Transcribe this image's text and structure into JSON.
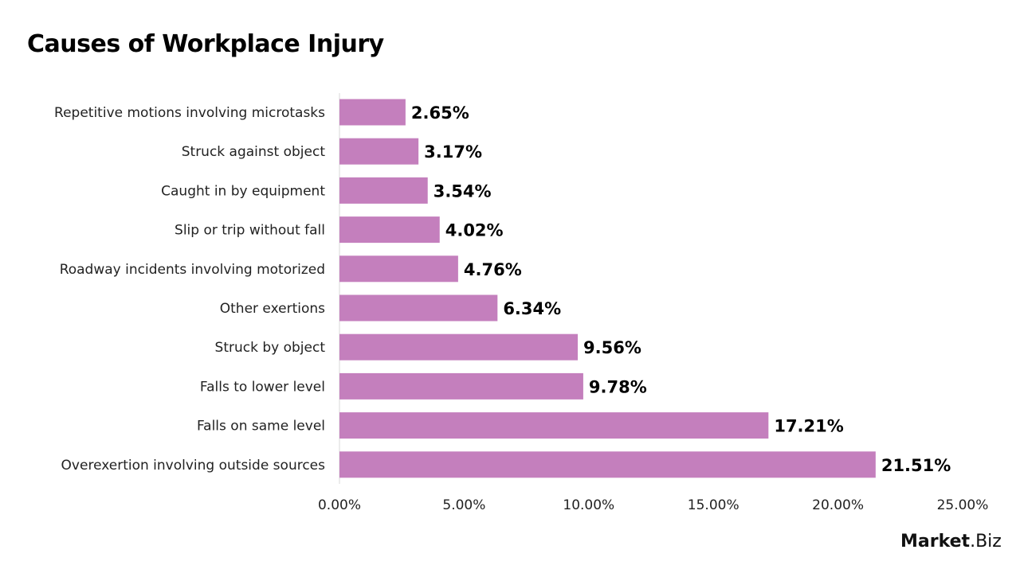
{
  "chart_data": {
    "type": "bar",
    "orientation": "horizontal",
    "title": "Causes of Workplace Injury",
    "categories": [
      "Repetitive motions involving microtasks",
      "Struck against object",
      "Caught in by equipment",
      "Slip or trip without fall",
      "Roadway incidents involving motorized",
      "Other exertions",
      "Struck by object",
      "Falls to lower level",
      "Falls on same level",
      "Overexertion involving outside sources"
    ],
    "values": [
      2.65,
      3.17,
      3.54,
      4.02,
      4.76,
      6.34,
      9.56,
      9.78,
      17.21,
      21.51
    ],
    "data_labels": [
      "2.65%",
      "3.17%",
      "3.54%",
      "4.02%",
      "4.76%",
      "6.34%",
      "9.56%",
      "9.78%",
      "17.21%",
      "21.51%"
    ],
    "xlim": [
      0,
      25
    ],
    "x_ticks": [
      "0.00%",
      "5.00%",
      "10.00%",
      "15.00%",
      "20.00%",
      "25.00%"
    ],
    "grid": false,
    "bar_color": "#c47fbd"
  },
  "logo": {
    "part1": "Market",
    "part2": ".Biz"
  }
}
